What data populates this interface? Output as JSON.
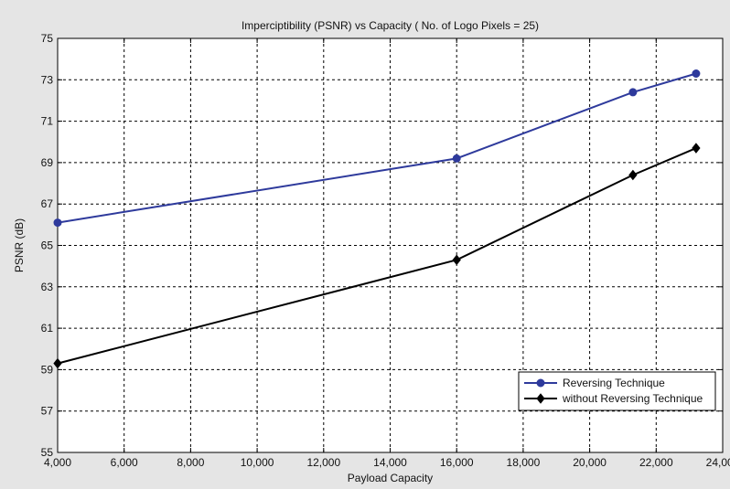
{
  "chart_data": {
    "type": "line",
    "title": "Imperciptibility (PSNR) vs Capacity ( No. of Logo Pixels = 25)",
    "xlabel": "Payload Capacity",
    "ylabel": "PSNR (dB)",
    "xlim": [
      4000,
      24000
    ],
    "ylim": [
      55,
      75
    ],
    "xticks": [
      4000,
      6000,
      8000,
      10000,
      12000,
      14000,
      16000,
      18000,
      20000,
      22000,
      24000
    ],
    "xtick_labels": [
      "4,000",
      "6,000",
      "8,000",
      "10,000",
      "12,000",
      "14,000",
      "16,000",
      "18,000",
      "20,000",
      "22,000",
      "24,000"
    ],
    "yticks": [
      55,
      57,
      59,
      61,
      63,
      65,
      67,
      69,
      71,
      73,
      75
    ],
    "ytick_labels": [
      "55",
      "57",
      "59",
      "61",
      "63",
      "65",
      "67",
      "69",
      "71",
      "73",
      "75"
    ],
    "grid": true,
    "legend_position": "bottom-right",
    "series": [
      {
        "name": "Reversing Technique",
        "color": "#2e3a9c",
        "marker": "circle",
        "x": [
          4000,
          16000,
          21300,
          23200
        ],
        "y": [
          66.1,
          69.2,
          72.4,
          73.3
        ]
      },
      {
        "name": "without Reversing Technique",
        "color": "#000000",
        "marker": "diamond",
        "x": [
          4000,
          16000,
          21300,
          23200
        ],
        "y": [
          59.3,
          64.3,
          68.4,
          69.7
        ]
      }
    ]
  }
}
